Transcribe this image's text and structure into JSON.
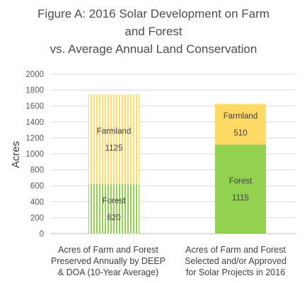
{
  "chart_data": {
    "type": "bar",
    "stacked": true,
    "title_lines": [
      "Figure A: 2016 Solar Development on Farm",
      "and Forest",
      "vs. Average Annual Land Conservation"
    ],
    "ylabel": "Acres",
    "ylim": [
      0,
      2000
    ],
    "y_ticks": [
      "0",
      "200",
      "400",
      "600",
      "800",
      "1000",
      "1200",
      "1400",
      "1600",
      "1800",
      "2000"
    ],
    "grid": true,
    "categories": [
      {
        "lines": [
          "Acres of Farm and Forest",
          "Preserved Annually by DEEP",
          "& DOA (10-Year Average)"
        ]
      },
      {
        "lines": [
          "Acres of Farm and Forest",
          "Selected and/or Approved",
          "for Solar Projects  in 2016"
        ]
      }
    ],
    "series": [
      {
        "name": "Forest",
        "values": [
          620,
          1115
        ],
        "value_labels": [
          "620",
          "1115"
        ],
        "color": "#92d050"
      },
      {
        "name": "Farmland",
        "values": [
          1125,
          510
        ],
        "value_labels": [
          "1125",
          "510"
        ],
        "color": "#ffd966"
      }
    ],
    "bar_styles": [
      "striped",
      "solid"
    ]
  }
}
